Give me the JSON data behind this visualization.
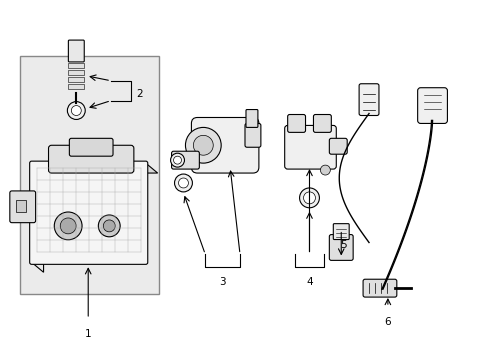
{
  "bg_color": "#ffffff",
  "line_color": "#000000",
  "box_fill": "#e8e8e8",
  "part_fill": "#f5f5f5",
  "fig_width": 4.89,
  "fig_height": 3.6,
  "dpi": 100
}
